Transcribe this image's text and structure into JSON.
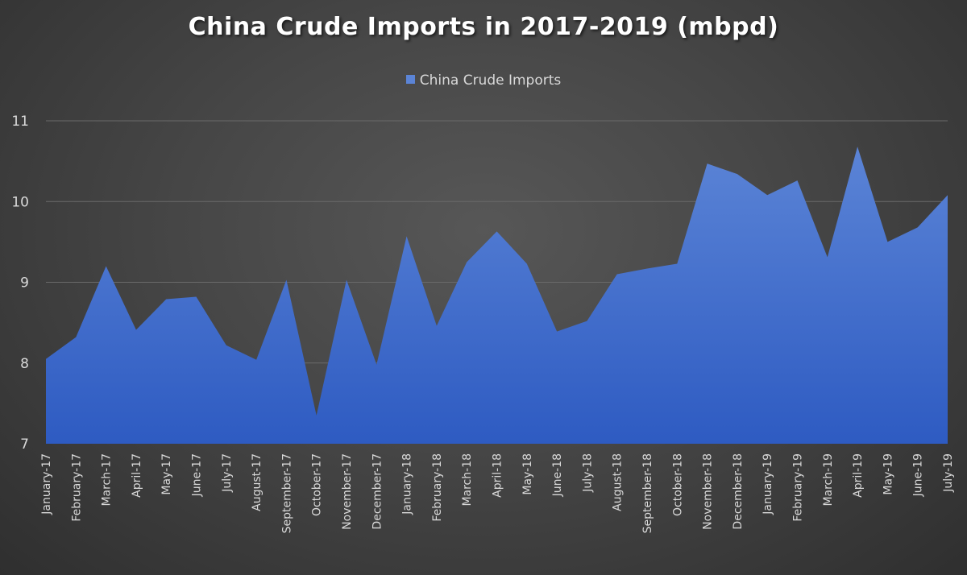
{
  "chart_data": {
    "type": "area",
    "title": "China Crude Imports in 2017-2019 (mbpd)",
    "xlabel": "",
    "ylabel": "",
    "ylim": [
      7,
      11
    ],
    "yticks": [
      7,
      8,
      9,
      10,
      11
    ],
    "grid": true,
    "legend_position": "top",
    "colors": {
      "area_top": "#5b84d6",
      "area_bottom": "#2e5bc2",
      "grid": "#6a6a6a"
    },
    "categories": [
      "January-17",
      "February-17",
      "March-17",
      "April-17",
      "May-17",
      "June-17",
      "July-17",
      "August-17",
      "September-17",
      "October-17",
      "November-17",
      "December-17",
      "January-18",
      "February-18",
      "March-18",
      "April-18",
      "May-18",
      "June-18",
      "July-18",
      "August-18",
      "September-18",
      "October-18",
      "November-18",
      "December-18",
      "January-19",
      "February-19",
      "March-19",
      "April-19",
      "May-19",
      "June-19",
      "July-19"
    ],
    "series": [
      {
        "name": "China Crude Imports",
        "values": [
          8.05,
          8.32,
          9.2,
          8.41,
          8.79,
          8.82,
          8.22,
          8.04,
          9.03,
          7.35,
          9.03,
          7.98,
          9.57,
          8.46,
          9.25,
          9.63,
          9.23,
          8.39,
          8.52,
          9.1,
          9.17,
          9.23,
          10.47,
          10.34,
          10.08,
          10.26,
          9.31,
          10.68,
          9.5,
          9.68,
          10.08
        ]
      }
    ]
  }
}
